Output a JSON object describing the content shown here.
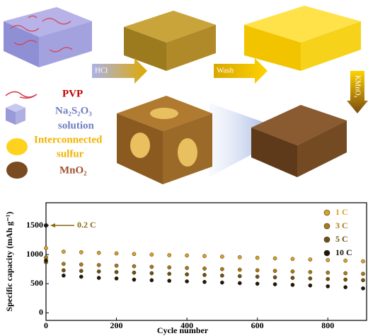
{
  "schematic": {
    "steps": [
      "HCl",
      "Wash",
      "KMnO₄"
    ],
    "legend": [
      {
        "lines": [
          "PVP"
        ]
      },
      {
        "lines": [
          "Na₂S₂O₃",
          "solution"
        ]
      },
      {
        "lines": [
          "Interconnected",
          "sulfur"
        ]
      },
      {
        "lines": [
          "MnO₂"
        ]
      }
    ]
  },
  "chart_data": {
    "type": "scatter",
    "xlabel": "Cycle number",
    "ylabel": "Specific capacity (mAh g⁻¹)",
    "x": [
      0,
      50,
      100,
      150,
      200,
      250,
      300,
      350,
      400,
      450,
      500,
      550,
      600,
      650,
      700,
      750,
      800,
      850,
      900
    ],
    "series": [
      {
        "name": "1 C",
        "color": "#d9a227",
        "values": [
          1110,
          1050,
          1040,
          1030,
          1020,
          1010,
          1000,
          990,
          985,
          975,
          965,
          955,
          945,
          935,
          925,
          915,
          905,
          895,
          885
        ]
      },
      {
        "name": "3 C",
        "color": "#a87a1a",
        "values": [
          950,
          840,
          830,
          820,
          810,
          800,
          790,
          780,
          770,
          760,
          750,
          740,
          730,
          720,
          710,
          700,
          690,
          680,
          670
        ]
      },
      {
        "name": "5 C",
        "color": "#6e5214",
        "values": [
          870,
          730,
          720,
          710,
          700,
          690,
          680,
          670,
          660,
          650,
          640,
          630,
          620,
          610,
          600,
          590,
          580,
          570,
          560
        ]
      },
      {
        "name": "10 C",
        "color": "#1e1810",
        "values": [
          900,
          640,
          620,
          600,
          590,
          570,
          560,
          550,
          540,
          530,
          520,
          510,
          500,
          490,
          480,
          470,
          455,
          440,
          420
        ]
      }
    ],
    "annotation": {
      "text": "0.2 C",
      "x": 0,
      "y": 1500
    },
    "xlim": [
      0,
      910
    ],
    "ylim": [
      -130,
      1890
    ],
    "xticks": [
      0,
      200,
      400,
      600,
      800
    ],
    "yticks": [
      0,
      500,
      1000,
      1500
    ],
    "legend": "top-right"
  }
}
